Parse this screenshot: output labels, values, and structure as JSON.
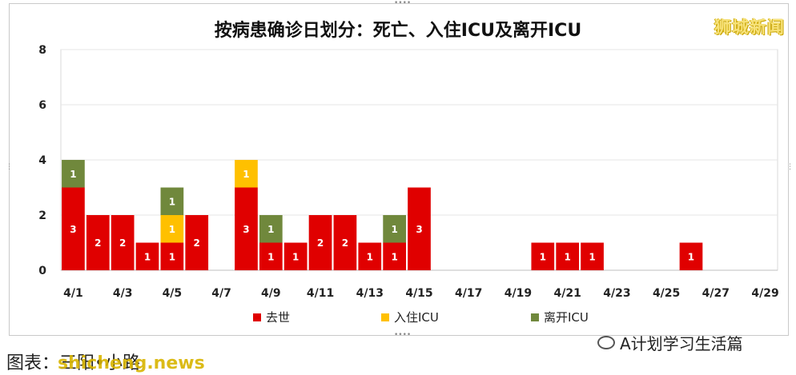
{
  "watermark_top": "狮城新闻",
  "caption_right": "A计划学习生活篇",
  "bottom_left_text": "图表：三阳•小路",
  "watermark_bottom": "shicheng.news",
  "colors": {
    "deaths": "#e00000",
    "icu_in": "#ffc000",
    "icu_out": "#70883c"
  },
  "chart_data": {
    "type": "bar",
    "stacked": true,
    "title": "按病患确诊日划分：死亡、入住ICU及离开ICU",
    "ylim": [
      0,
      8
    ],
    "yticks": [
      0,
      2,
      4,
      6,
      8
    ],
    "grid": true,
    "legend_position": "bottom",
    "categories": [
      "4/1",
      "4/2",
      "4/3",
      "4/4",
      "4/5",
      "4/6",
      "4/7",
      "4/8",
      "4/9",
      "4/10",
      "4/11",
      "4/12",
      "4/13",
      "4/14",
      "4/15",
      "4/16",
      "4/17",
      "4/18",
      "4/19",
      "4/20",
      "4/21",
      "4/22",
      "4/23",
      "4/24",
      "4/25",
      "4/26",
      "4/27",
      "4/28",
      "4/29"
    ],
    "xticks": [
      "4/1",
      "4/3",
      "4/5",
      "4/7",
      "4/9",
      "4/11",
      "4/13",
      "4/15",
      "4/17",
      "4/19",
      "4/21",
      "4/23",
      "4/25",
      "4/27",
      "4/29"
    ],
    "series": [
      {
        "name": "去世",
        "values": [
          3,
          2,
          2,
          1,
          1,
          2,
          0,
          3,
          1,
          1,
          2,
          2,
          1,
          1,
          3,
          0,
          0,
          0,
          0,
          1,
          1,
          1,
          0,
          0,
          0,
          1,
          0,
          0,
          0
        ]
      },
      {
        "name": "入住ICU",
        "values": [
          0,
          0,
          0,
          0,
          1,
          0,
          0,
          1,
          0,
          0,
          0,
          0,
          0,
          0,
          0,
          0,
          0,
          0,
          0,
          0,
          0,
          0,
          0,
          0,
          0,
          0,
          0,
          0,
          0
        ]
      },
      {
        "name": "离开ICU",
        "values": [
          1,
          0,
          0,
          0,
          1,
          0,
          0,
          0,
          1,
          0,
          0,
          0,
          0,
          1,
          0,
          0,
          0,
          0,
          0,
          0,
          0,
          0,
          0,
          0,
          0,
          0,
          0,
          0,
          0
        ]
      }
    ]
  }
}
